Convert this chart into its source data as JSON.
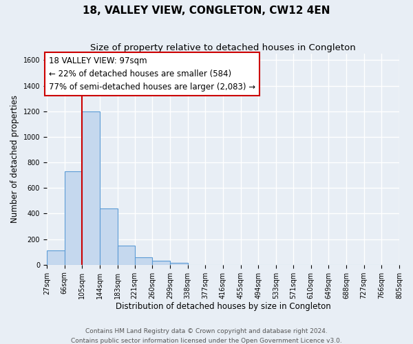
{
  "title": "18, VALLEY VIEW, CONGLETON, CW12 4EN",
  "subtitle": "Size of property relative to detached houses in Congleton",
  "xlabel": "Distribution of detached houses by size in Congleton",
  "ylabel": "Number of detached properties",
  "footnote1": "Contains HM Land Registry data © Crown copyright and database right 2024.",
  "footnote2": "Contains public sector information licensed under the Open Government Licence v3.0.",
  "bin_edges": [
    27,
    66,
    105,
    144,
    183,
    221,
    260,
    299,
    338,
    377,
    416,
    455,
    494,
    533,
    571,
    610,
    649,
    688,
    727,
    766,
    805
  ],
  "bin_counts": [
    110,
    730,
    1200,
    440,
    148,
    60,
    32,
    14,
    0,
    0,
    0,
    0,
    0,
    0,
    0,
    0,
    0,
    0,
    0,
    0
  ],
  "bar_color": "#c5d8ee",
  "bar_edge_color": "#5b9bd5",
  "property_line_x": 105,
  "property_line_color": "#cc0000",
  "annotation_line1": "18 VALLEY VIEW: 97sqm",
  "annotation_line2": "← 22% of detached houses are smaller (584)",
  "annotation_line3": "77% of semi-detached houses are larger (2,083) →",
  "annotation_box_color": "#ffffff",
  "annotation_box_edge_color": "#cc0000",
  "ylim": [
    0,
    1650
  ],
  "yticks": [
    0,
    200,
    400,
    600,
    800,
    1000,
    1200,
    1400,
    1600
  ],
  "xtick_labels": [
    "27sqm",
    "66sqm",
    "105sqm",
    "144sqm",
    "183sqm",
    "221sqm",
    "260sqm",
    "299sqm",
    "338sqm",
    "377sqm",
    "416sqm",
    "455sqm",
    "494sqm",
    "533sqm",
    "571sqm",
    "610sqm",
    "649sqm",
    "688sqm",
    "727sqm",
    "766sqm",
    "805sqm"
  ],
  "background_color": "#e8eef5",
  "plot_background_color": "#e8eef5",
  "grid_color": "#ffffff",
  "title_fontsize": 11,
  "subtitle_fontsize": 9.5,
  "axis_label_fontsize": 8.5,
  "tick_fontsize": 7,
  "annotation_fontsize": 8.5,
  "footnote_fontsize": 6.5
}
